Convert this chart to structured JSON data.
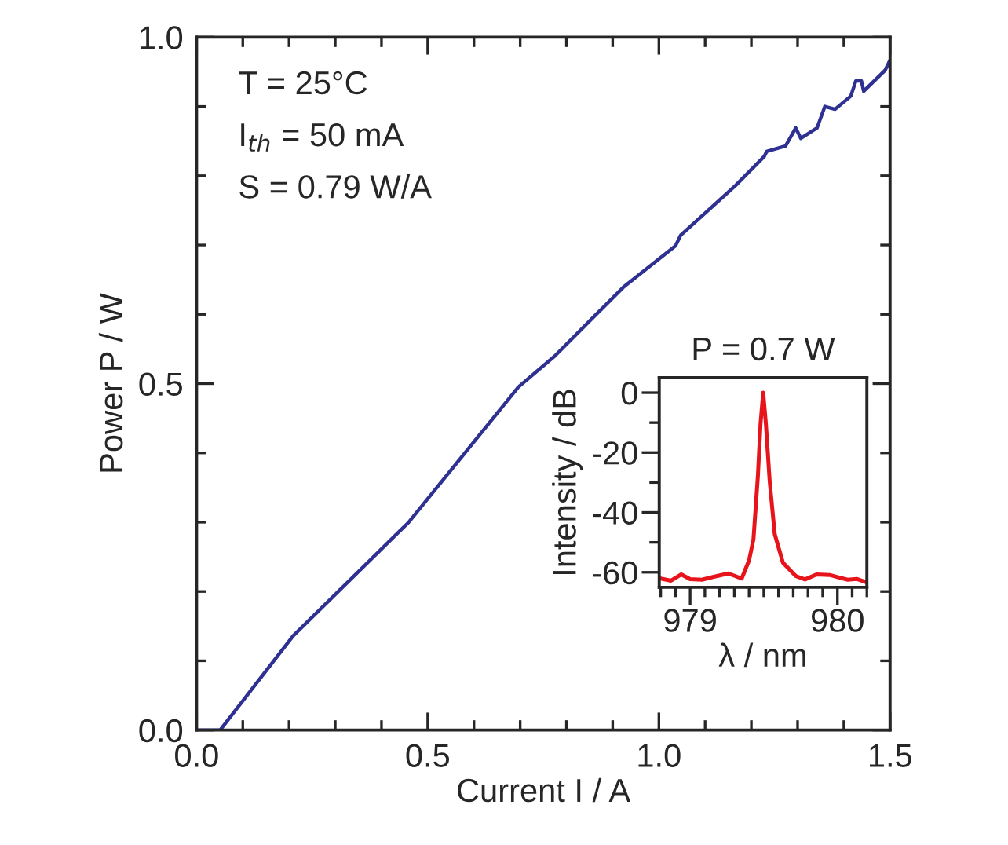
{
  "chart_data": [
    {
      "type": "line",
      "xlabel": "Current I / A",
      "ylabel": "Power P / W",
      "annotations": [
        "T = 25°C",
        "I$_{th}$ = 50 mA",
        "S = 0.79 W/A"
      ],
      "series": [
        {
          "color": "#2e3192",
          "x": [
            0,
            0.051,
            0.209,
            0.459,
            0.696,
            0.775,
            0.866,
            0.923,
            1.036,
            1.047,
            1.166,
            1.228,
            1.233,
            1.274,
            1.296,
            1.307,
            1.342,
            1.359,
            1.381,
            1.415,
            1.426,
            1.438,
            1.443,
            1.466,
            1.489,
            1.5
          ],
          "values": [
            0,
            0,
            0.136,
            0.3,
            0.495,
            0.54,
            0.601,
            0.639,
            0.699,
            0.714,
            0.786,
            0.828,
            0.835,
            0.843,
            0.869,
            0.854,
            0.869,
            0.9,
            0.896,
            0.915,
            0.937,
            0.937,
            0.922,
            0.937,
            0.952,
            0.967
          ]
        }
      ],
      "xlim": [
        0,
        1.5
      ],
      "ylim": [
        0,
        1.0
      ],
      "xticks": [
        {
          "value": 0,
          "label": "0.0"
        },
        {
          "value": 0.1,
          "label": null
        },
        {
          "value": 0.2,
          "label": null
        },
        {
          "value": 0.3,
          "label": null
        },
        {
          "value": 0.4,
          "label": null
        },
        {
          "value": 0.5,
          "label": "0.5"
        },
        {
          "value": 0.6,
          "label": null
        },
        {
          "value": 0.7,
          "label": null
        },
        {
          "value": 0.8,
          "label": null
        },
        {
          "value": 0.9,
          "label": null
        },
        {
          "value": 1.0,
          "label": "1.0"
        },
        {
          "value": 1.1,
          "label": null
        },
        {
          "value": 1.2,
          "label": null
        },
        {
          "value": 1.3,
          "label": null
        },
        {
          "value": 1.4,
          "label": null
        },
        {
          "value": 1.5,
          "label": "1.5"
        }
      ],
      "yticks": [
        {
          "value": 0,
          "label": "0.0"
        },
        {
          "value": 0.1,
          "label": null
        },
        {
          "value": 0.2,
          "label": null
        },
        {
          "value": 0.3,
          "label": null
        },
        {
          "value": 0.4,
          "label": null
        },
        {
          "value": 0.5,
          "label": "0.5"
        },
        {
          "value": 0.6,
          "label": null
        },
        {
          "value": 0.7,
          "label": null
        },
        {
          "value": 0.8,
          "label": null
        },
        {
          "value": 0.9,
          "label": null
        },
        {
          "value": 1.0,
          "label": "1.0"
        }
      ],
      "grid": false,
      "legend": false
    },
    {
      "type": "line",
      "title": "P = 0.7 W",
      "xlabel": "λ / nm",
      "ylabel": "Intensity / dB",
      "series": [
        {
          "color": "#e8141b",
          "x": [
            978.8,
            978.87,
            978.94,
            979.0,
            979.08,
            979.16,
            979.26,
            979.35,
            979.4,
            979.43,
            979.46,
            979.478,
            979.496,
            979.514,
            979.54,
            979.574,
            979.63,
            979.716,
            979.78,
            979.858,
            979.947,
            980.0,
            980.07,
            980.13,
            980.195
          ],
          "values": [
            -62.1,
            -62.8,
            -60.7,
            -62.3,
            -62.5,
            -61.5,
            -60.4,
            -62.1,
            -56,
            -48.9,
            -27.8,
            -10.2,
            0,
            -10.2,
            -29.6,
            -47.2,
            -56.8,
            -61.2,
            -62.4,
            -60.7,
            -60.9,
            -61.6,
            -62.5,
            -62.2,
            -63.3
          ]
        }
      ],
      "xlim": [
        978.79,
        980.2
      ],
      "ylim": [
        -65,
        5
      ],
      "xticks": [
        {
          "value": 978.8,
          "label": null
        },
        {
          "value": 978.9,
          "label": null
        },
        {
          "value": 979,
          "label": "979"
        },
        {
          "value": 979.1,
          "label": null
        },
        {
          "value": 979.2,
          "label": null
        },
        {
          "value": 979.3,
          "label": null
        },
        {
          "value": 979.4,
          "label": null
        },
        {
          "value": 979.5,
          "label": null
        },
        {
          "value": 979.6,
          "label": null
        },
        {
          "value": 979.7,
          "label": null
        },
        {
          "value": 979.8,
          "label": null
        },
        {
          "value": 979.9,
          "label": null
        },
        {
          "value": 980,
          "label": "980"
        },
        {
          "value": 980.1,
          "label": null
        },
        {
          "value": 980.2,
          "label": null
        }
      ],
      "yticks": [
        {
          "value": 0,
          "label": "0"
        },
        {
          "value": -10,
          "label": null
        },
        {
          "value": -20,
          "label": "-20"
        },
        {
          "value": -30,
          "label": null
        },
        {
          "value": -40,
          "label": "-40"
        },
        {
          "value": -50,
          "label": null
        },
        {
          "value": -60,
          "label": "-60"
        }
      ],
      "grid": false,
      "legend": false
    }
  ]
}
